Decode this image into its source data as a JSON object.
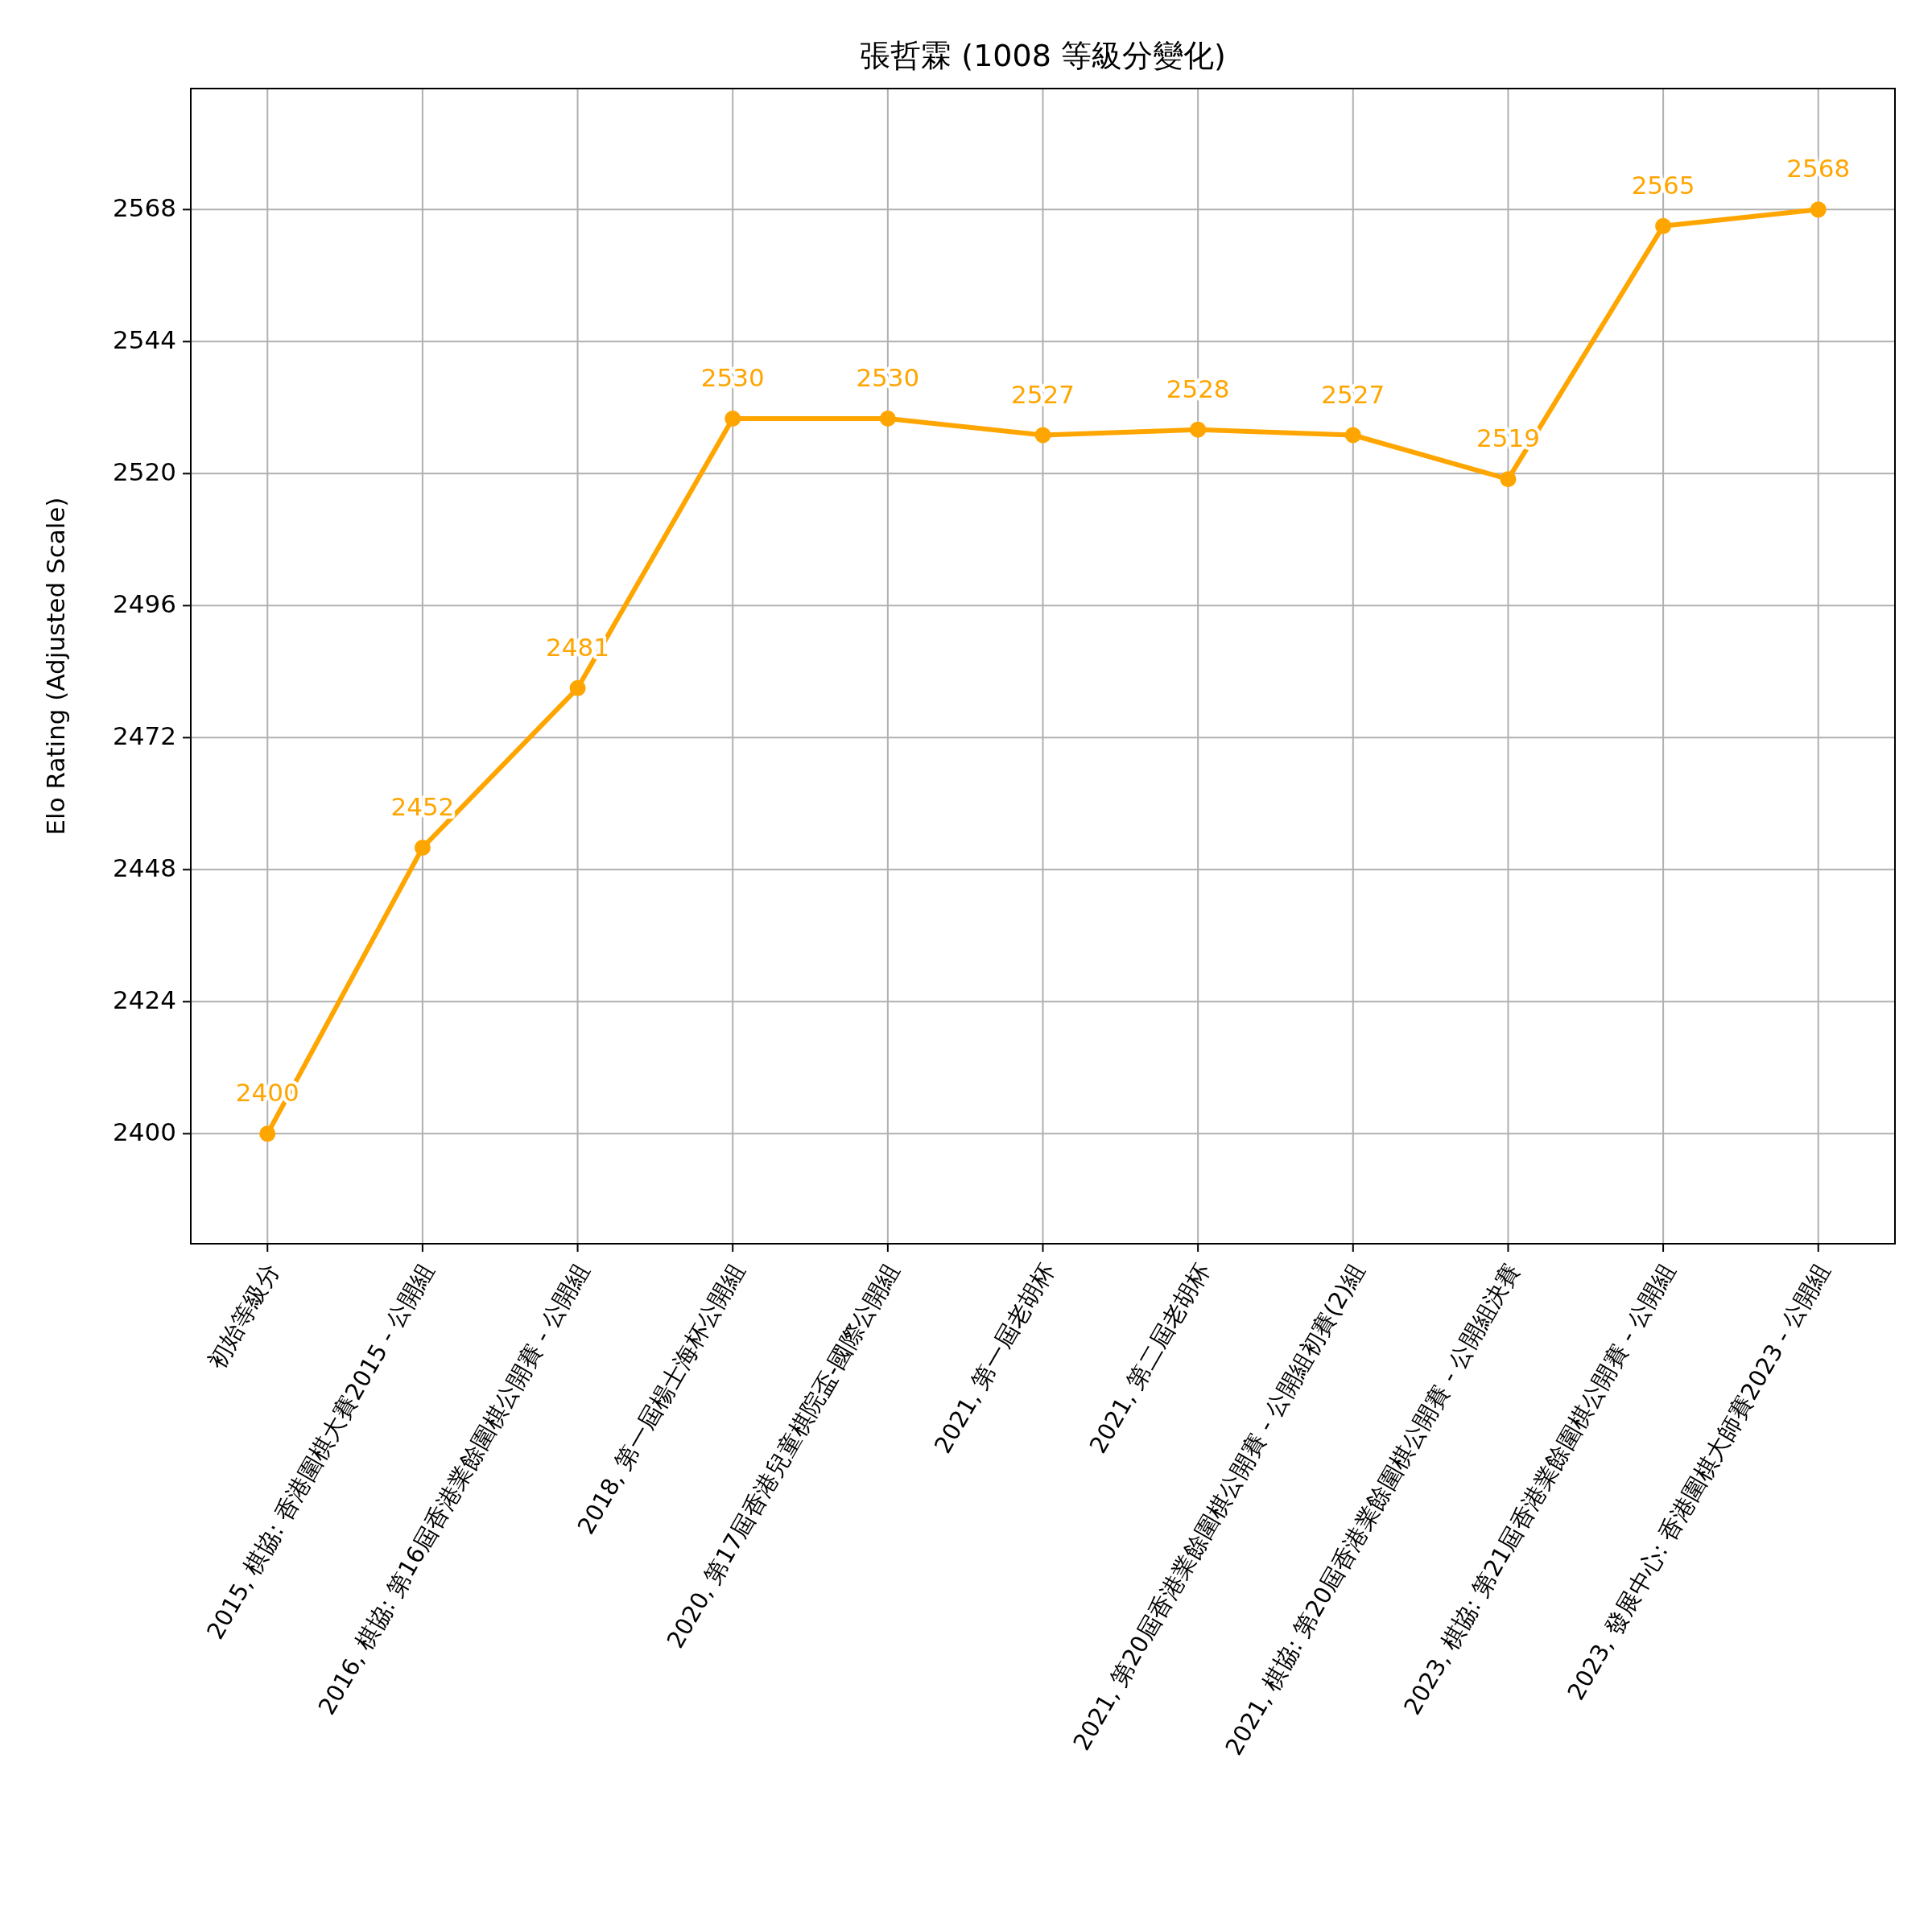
{
  "chart_data": {
    "type": "line",
    "title": "張哲霖 (1008 等級分變化)",
    "ylabel": "Elo Rating (Adjusted Scale)",
    "categories": [
      "初始等級分",
      "2015, 棋協: 香港圍棋大賽2015 - 公開組",
      "2016, 棋協: 第16屆香港業餘圍棋公開賽 - 公開組",
      "2018, 第一屆楊士海杯公開組",
      "2020, 第17屆香港兒童棋院盃-國際公開組",
      "2021, 第一屆老胡杯",
      "2021, 第二屆老胡杯",
      "2021, 第20屆香港業餘圍棋公開賽 - 公開組初賽(2)組",
      "2021, 棋協: 第20屆香港業餘圍棋公開賽 - 公開組決賽",
      "2023, 棋協: 第21屆香港業餘圍棋公開賽 - 公開組",
      "2023, 發展中心: 香港圍棋大師賽2023 - 公開組"
    ],
    "values": [
      2400,
      2452,
      2481,
      2530,
      2530,
      2527,
      2528,
      2527,
      2519,
      2565,
      2568
    ],
    "color": "#ffa500",
    "marker": "circle",
    "line_style": "solid",
    "data_labels": true,
    "grid": true,
    "ylim": [
      2380,
      2590
    ],
    "yticks": [
      2400,
      2424,
      2448,
      2472,
      2496,
      2520,
      2544,
      2568
    ]
  }
}
